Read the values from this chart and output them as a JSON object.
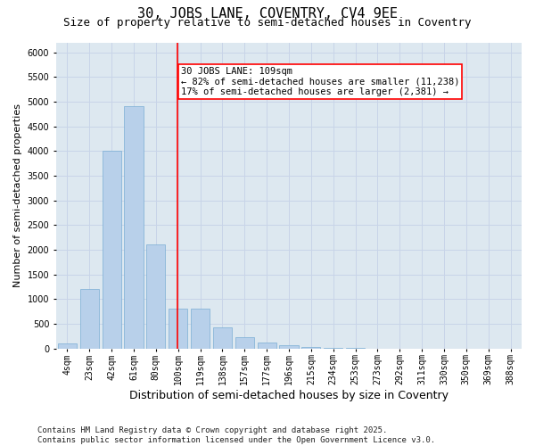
{
  "title": "30, JOBS LANE, COVENTRY, CV4 9EE",
  "subtitle": "Size of property relative to semi-detached houses in Coventry",
  "xlabel": "Distribution of semi-detached houses by size in Coventry",
  "ylabel": "Number of semi-detached properties",
  "categories": [
    "4sqm",
    "23sqm",
    "42sqm",
    "61sqm",
    "80sqm",
    "100sqm",
    "119sqm",
    "138sqm",
    "157sqm",
    "177sqm",
    "196sqm",
    "215sqm",
    "234sqm",
    "253sqm",
    "273sqm",
    "292sqm",
    "311sqm",
    "330sqm",
    "350sqm",
    "369sqm",
    "388sqm"
  ],
  "values": [
    100,
    1200,
    4000,
    4900,
    2100,
    800,
    800,
    420,
    230,
    120,
    60,
    30,
    10,
    5,
    2,
    1,
    1,
    0,
    0,
    0,
    0
  ],
  "bar_color": "#b8d0ea",
  "bar_edge_color": "#7aaed4",
  "vline_label": "30 JOBS LANE: 109sqm",
  "vline_color": "red",
  "annotation_smaller": "← 82% of semi-detached houses are smaller (11,238)",
  "annotation_larger": "17% of semi-detached houses are larger (2,381) →",
  "annotation_box_color": "white",
  "annotation_box_edge": "red",
  "ylim": [
    0,
    6200
  ],
  "yticks": [
    0,
    500,
    1000,
    1500,
    2000,
    2500,
    3000,
    3500,
    4000,
    4500,
    5000,
    5500,
    6000
  ],
  "grid_color": "#c8d4e8",
  "bg_color": "#dde8f0",
  "footer": "Contains HM Land Registry data © Crown copyright and database right 2025.\nContains public sector information licensed under the Open Government Licence v3.0.",
  "title_fontsize": 11,
  "subtitle_fontsize": 9,
  "xlabel_fontsize": 9,
  "ylabel_fontsize": 8,
  "tick_fontsize": 7,
  "footer_fontsize": 6.5,
  "annot_fontsize": 7.5
}
